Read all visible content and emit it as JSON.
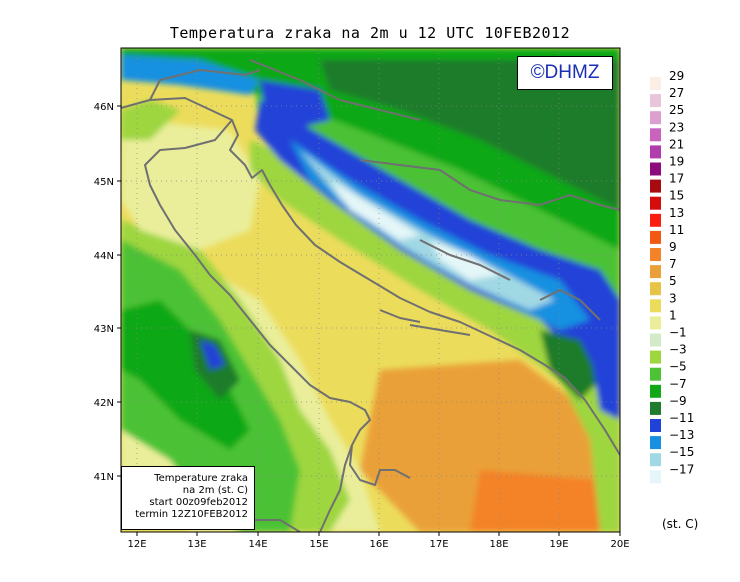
{
  "title": "Temperatura zraka na 2m u 12 UTC 10FEB2012",
  "logo": "©DHMZ",
  "info_box": {
    "line1": "Temperature zraka",
    "line2": "na 2m (st. C)",
    "line3": "start 00z09feb2012",
    "line4": "termin 12Z10FEB2012"
  },
  "lat_labels": [
    "46N",
    "45N",
    "44N",
    "43N",
    "42N",
    "41N"
  ],
  "lon_labels": [
    "12E",
    "13E",
    "14E",
    "15E",
    "16E",
    "17E",
    "18E",
    "19E",
    "20E"
  ],
  "colorbar": {
    "labels": [
      "29",
      "27",
      "25",
      "23",
      "21",
      "19",
      "17",
      "15",
      "13",
      "11",
      "9",
      "7",
      "5",
      "3",
      "1",
      "−1",
      "−3",
      "−5",
      "−7",
      "−9",
      "−11",
      "−13",
      "−15",
      "−17"
    ],
    "unit": "(st. C)",
    "colors": [
      "#fbeee4",
      "#e6c6d8",
      "#dca0cf",
      "#c864be",
      "#b03cae",
      "#8c0c7e",
      "#a80a12",
      "#d40c0c",
      "#fa1e10",
      "#f25a14",
      "#f48226",
      "#eaa038",
      "#e8c446",
      "#ecdc5c",
      "#eaee9a",
      "#d2eac8",
      "#9ed640",
      "#4cc234",
      "#11a818",
      "#1e7c2c",
      "#2042d8",
      "#1890e0",
      "#a0d8e4",
      "#e4f6f8"
    ]
  }
}
